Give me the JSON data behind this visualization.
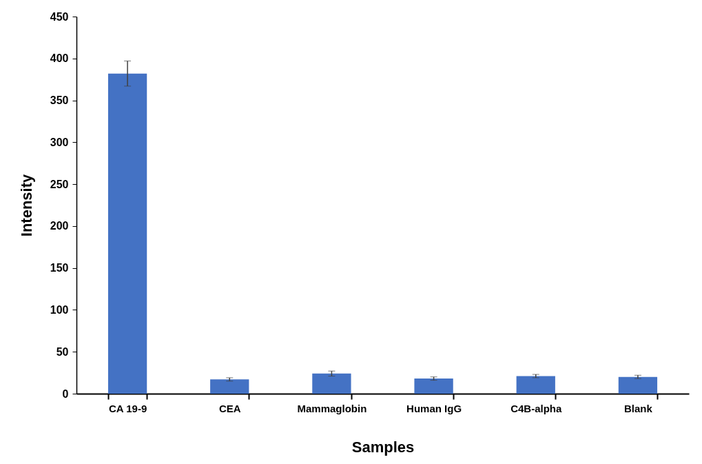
{
  "chart_data": {
    "type": "bar",
    "xlabel": "Samples",
    "ylabel": "Intensity",
    "categories": [
      "CA 19-9",
      "CEA",
      "Mammaglobin",
      "Human IgG",
      "C4B-alpha",
      "Blank"
    ],
    "values": [
      382,
      17,
      24,
      18,
      21,
      20
    ],
    "errors": [
      15,
      2,
      3,
      2,
      2,
      2
    ],
    "color": "#4472c4",
    "ylim": [
      0,
      450
    ],
    "yticks": [
      0,
      50,
      100,
      150,
      200,
      250,
      300,
      350,
      400,
      450
    ],
    "grid": false
  }
}
